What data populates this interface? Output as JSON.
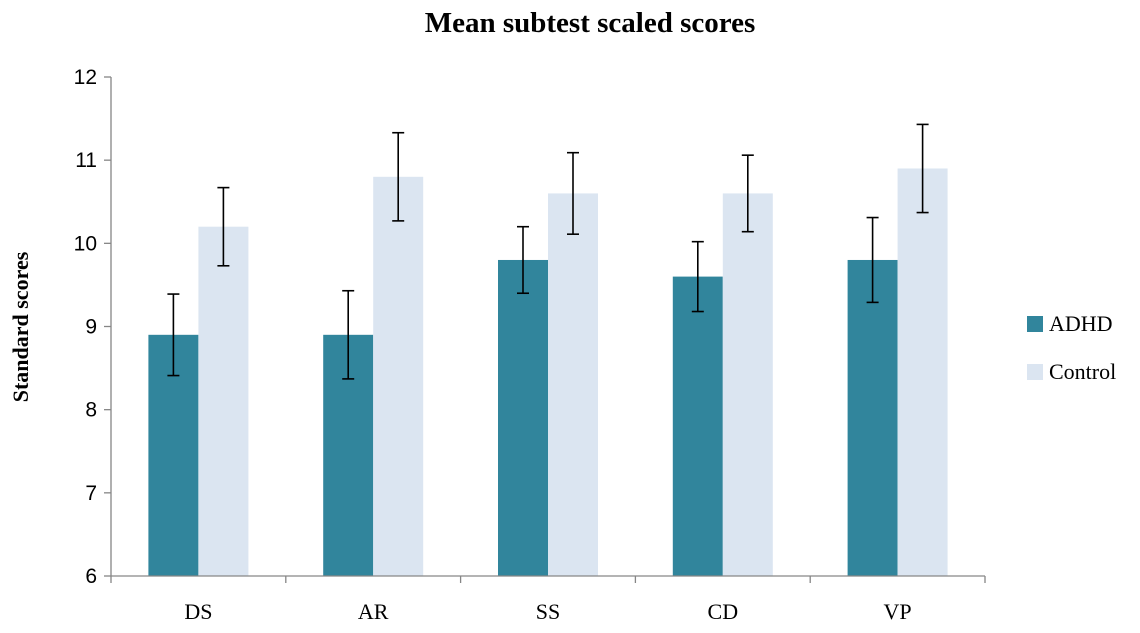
{
  "chart_data": {
    "type": "bar",
    "title": "Mean subtest scaled scores",
    "xlabel": "",
    "ylabel": "Standard scores",
    "ylim": [
      6,
      12
    ],
    "yticks": [
      6,
      7,
      8,
      9,
      10,
      11,
      12
    ],
    "categories": [
      "DS",
      "AR",
      "SS",
      "CD",
      "VP"
    ],
    "series": [
      {
        "name": "ADHD",
        "color": "#31859c",
        "values": [
          8.9,
          8.9,
          9.8,
          9.6,
          9.8
        ],
        "error": [
          0.49,
          0.53,
          0.4,
          0.42,
          0.51
        ]
      },
      {
        "name": "Control",
        "color": "#dbe5f1",
        "values": [
          10.2,
          10.8,
          10.6,
          10.6,
          10.9
        ],
        "error": [
          0.47,
          0.53,
          0.49,
          0.46,
          0.53
        ]
      }
    ],
    "error_bars": true,
    "grid": false,
    "legend_position": "right"
  }
}
